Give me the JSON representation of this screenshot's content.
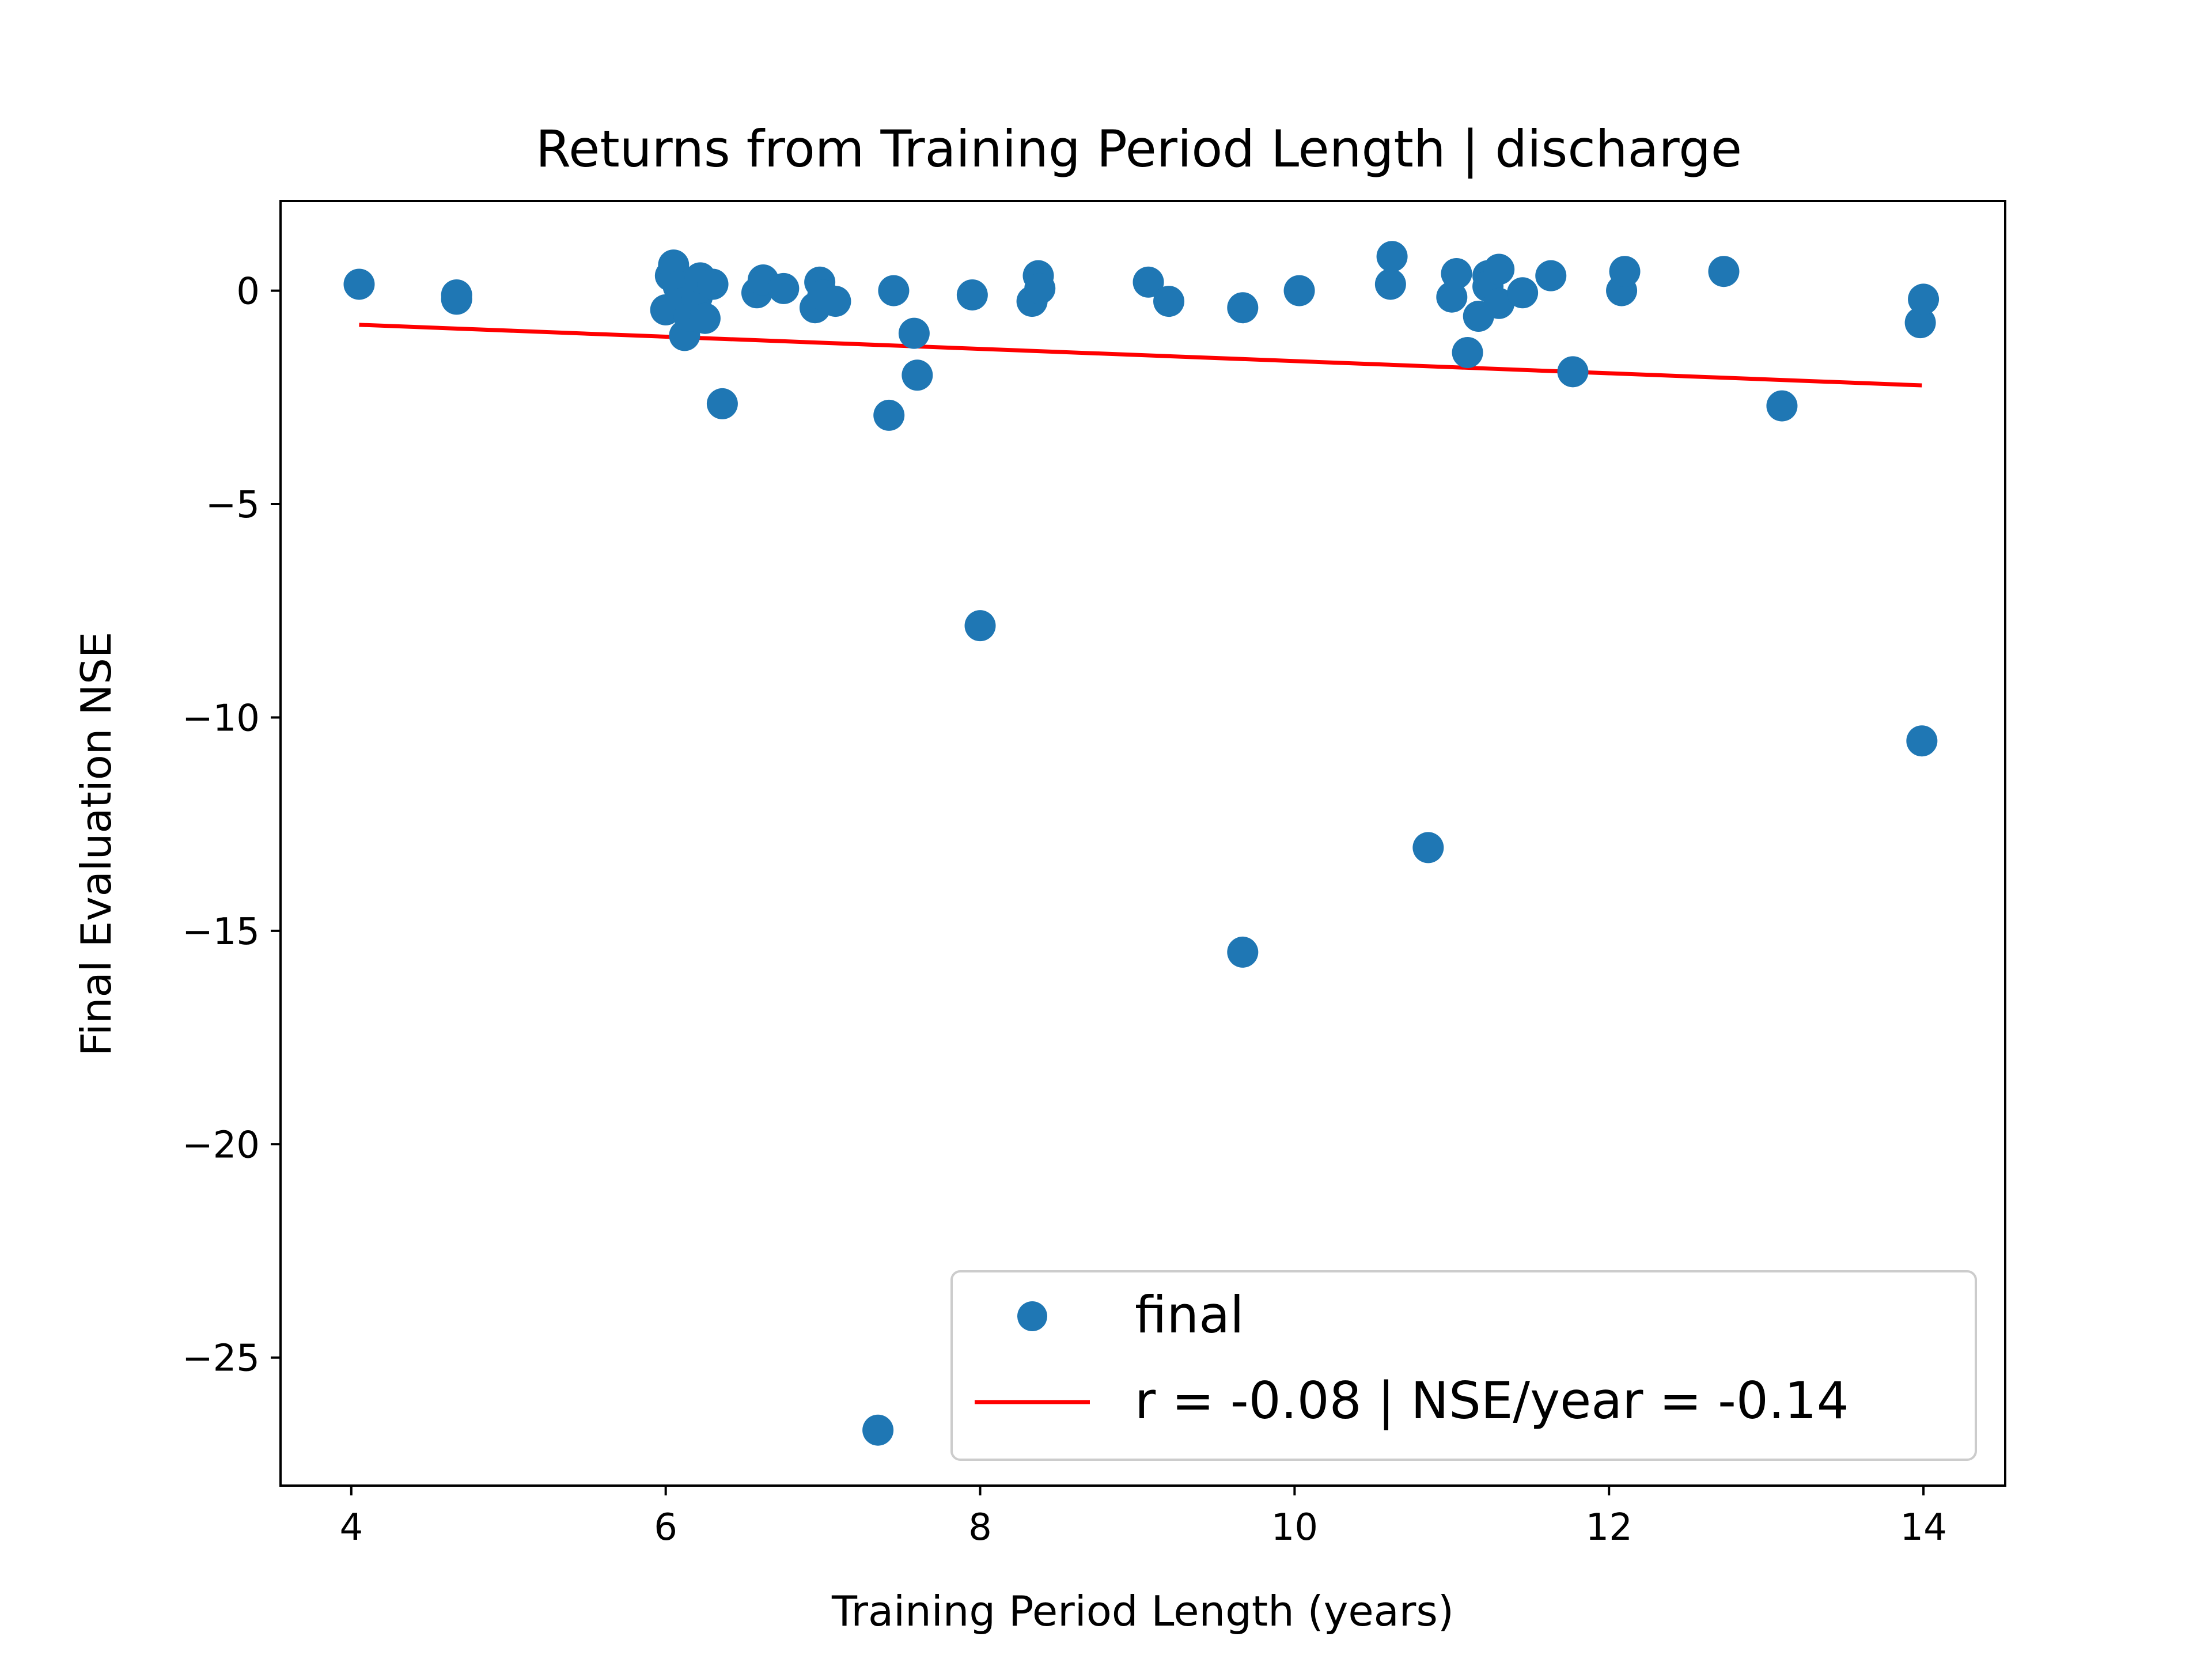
{
  "chart_data": {
    "type": "scatter",
    "title": "Returns from Training Period Length | discharge",
    "xlabel": "Training Period Length (years)",
    "ylabel": "Final Evaluation NSE",
    "xlim": [
      3.55,
      14.52
    ],
    "ylim": [
      -28.0,
      2.1
    ],
    "xticks": [
      4,
      6,
      8,
      10,
      12,
      14
    ],
    "yticks": [
      0,
      -5,
      -10,
      -15,
      -20,
      -25
    ],
    "xtick_labels": [
      "4",
      "6",
      "8",
      "10",
      "12",
      "14"
    ],
    "ytick_labels": [
      "0",
      "−5",
      "−10",
      "−15",
      "−20",
      "−25"
    ],
    "grid": false,
    "legend_position": "lower-right",
    "series": [
      {
        "name": "final",
        "kind": "scatter",
        "color": "#1f77b4",
        "points": [
          [
            4.05,
            0.15
          ],
          [
            4.67,
            -0.2
          ],
          [
            4.67,
            -0.1
          ],
          [
            6.0,
            -0.45
          ],
          [
            6.03,
            0.35
          ],
          [
            6.05,
            0.6
          ],
          [
            6.08,
            0.1
          ],
          [
            6.1,
            -0.3
          ],
          [
            6.12,
            -1.05
          ],
          [
            6.15,
            -0.6
          ],
          [
            6.2,
            -0.15
          ],
          [
            6.22,
            0.3
          ],
          [
            6.25,
            -0.65
          ],
          [
            6.3,
            0.15
          ],
          [
            6.36,
            -2.65
          ],
          [
            6.58,
            -0.05
          ],
          [
            6.62,
            0.25
          ],
          [
            6.75,
            0.05
          ],
          [
            6.95,
            -0.4
          ],
          [
            6.98,
            0.2
          ],
          [
            7.0,
            -0.1
          ],
          [
            7.08,
            -0.25
          ],
          [
            7.35,
            -26.7
          ],
          [
            7.42,
            -2.92
          ],
          [
            7.45,
            0.0
          ],
          [
            7.58,
            -1.0
          ],
          [
            7.6,
            -1.98
          ],
          [
            7.95,
            -0.1
          ],
          [
            8.0,
            -7.85
          ],
          [
            8.33,
            -0.25
          ],
          [
            8.37,
            0.35
          ],
          [
            8.38,
            0.05
          ],
          [
            9.07,
            0.2
          ],
          [
            9.2,
            -0.25
          ],
          [
            9.67,
            -15.5
          ],
          [
            9.67,
            -0.4
          ],
          [
            10.03,
            0.0
          ],
          [
            10.61,
            0.15
          ],
          [
            10.62,
            0.8
          ],
          [
            10.85,
            -13.05
          ],
          [
            11.0,
            -0.15
          ],
          [
            11.03,
            0.4
          ],
          [
            11.1,
            -1.45
          ],
          [
            11.17,
            -0.6
          ],
          [
            11.23,
            0.35
          ],
          [
            11.23,
            0.1
          ],
          [
            11.3,
            -0.3
          ],
          [
            11.3,
            0.5
          ],
          [
            11.45,
            -0.05
          ],
          [
            11.63,
            0.35
          ],
          [
            11.77,
            -1.9
          ],
          [
            12.08,
            0.0
          ],
          [
            12.1,
            0.45
          ],
          [
            12.73,
            0.45
          ],
          [
            13.1,
            -2.7
          ],
          [
            13.98,
            -0.75
          ],
          [
            13.99,
            -10.55
          ],
          [
            14.0,
            -0.2
          ]
        ]
      },
      {
        "name": "r = -0.08 | NSE/year = -0.14",
        "kind": "line",
        "color": "#ff0000",
        "points": [
          [
            4.05,
            -0.8
          ],
          [
            13.99,
            -2.22
          ]
        ]
      }
    ],
    "legend_entries": [
      "final",
      "r = -0.08 | NSE/year = -0.14"
    ]
  }
}
